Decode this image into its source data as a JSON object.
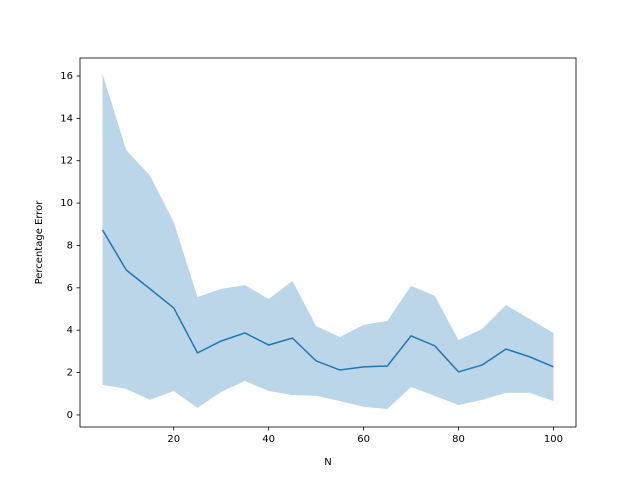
{
  "chart_data": {
    "type": "line",
    "xlabel": "N",
    "ylabel": "Percentage Error",
    "x": [
      5,
      10,
      15,
      20,
      25,
      30,
      35,
      40,
      45,
      50,
      55,
      60,
      65,
      70,
      75,
      80,
      85,
      90,
      95,
      100
    ],
    "series": [
      {
        "color": "#1f77b4",
        "band_color": "#1f77b4",
        "band_opacity": 0.3,
        "values": [
          8.73,
          6.84,
          5.95,
          5.05,
          2.93,
          3.49,
          3.87,
          3.3,
          3.63,
          2.55,
          2.12,
          2.27,
          2.31,
          3.73,
          3.26,
          2.03,
          2.36,
          3.11,
          2.74,
          2.27
        ],
        "upper": [
          16.1,
          12.5,
          11.3,
          9.1,
          5.57,
          5.95,
          6.13,
          5.47,
          6.32,
          4.2,
          3.68,
          4.25,
          4.44,
          6.09,
          5.62,
          3.54,
          4.06,
          5.19,
          4.53,
          3.87
        ],
        "lower": [
          1.42,
          1.23,
          0.71,
          1.13,
          0.33,
          1.09,
          1.6,
          1.13,
          0.94,
          0.9,
          0.66,
          0.38,
          0.28,
          1.32,
          0.9,
          0.47,
          0.71,
          1.04,
          1.04,
          0.66
        ]
      }
    ],
    "xlim": [
      0.25,
      104.75
    ],
    "xticks": [
      20,
      40,
      60,
      80,
      100
    ],
    "ylim": [
      -0.57,
      16.85
    ],
    "yticks": [
      0,
      2,
      4,
      6,
      8,
      10,
      12,
      14,
      16
    ],
    "grid": false
  }
}
